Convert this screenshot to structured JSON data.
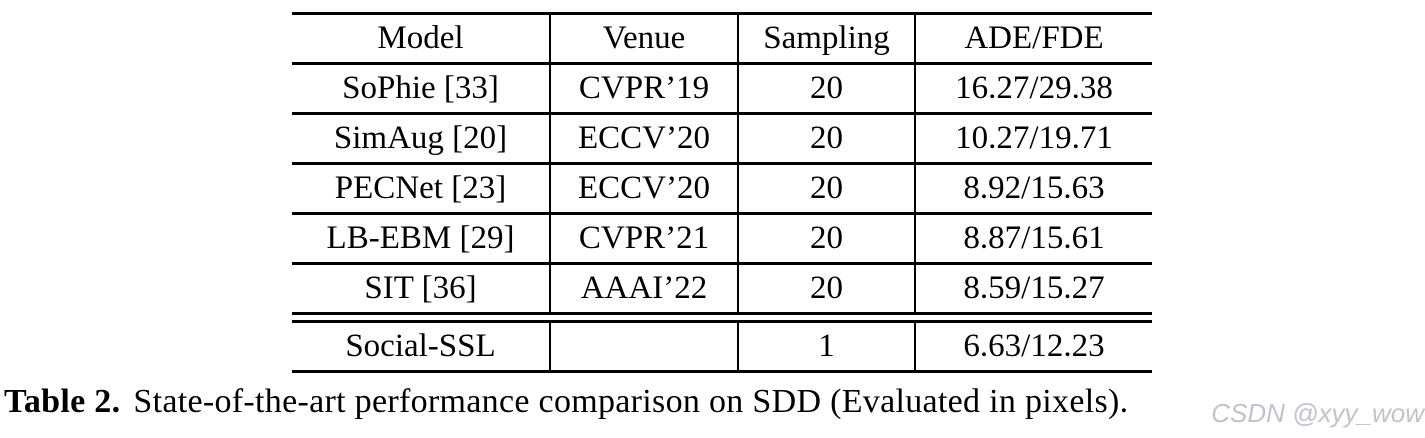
{
  "table": {
    "columns": [
      "Model",
      "Venue",
      "Sampling",
      "ADE/FDE"
    ],
    "rows": [
      {
        "model": "SoPhie [33]",
        "venue": "CVPR’19",
        "sampling": "20",
        "ade_fde": "16.27/29.38"
      },
      {
        "model": "SimAug [20]",
        "venue": "ECCV’20",
        "sampling": "20",
        "ade_fde": "10.27/19.71"
      },
      {
        "model": "PECNet [23]",
        "venue": "ECCV’20",
        "sampling": "20",
        "ade_fde": "8.92/15.63"
      },
      {
        "model": "LB-EBM [29]",
        "venue": "CVPR’21",
        "sampling": "20",
        "ade_fde": "8.87/15.61"
      },
      {
        "model": "SIT [36]",
        "venue": "AAAI’22",
        "sampling": "20",
        "ade_fde": "8.59/15.27"
      }
    ],
    "highlight_row": {
      "model": "Social-SSL",
      "venue": "",
      "sampling": "1",
      "ade_fde": "6.63/12.23"
    }
  },
  "caption": {
    "label": "Table 2.",
    "text": "State-of-the-art performance comparison on SDD (Evaluated in pixels)."
  },
  "watermark": "CSDN @xyy_wow",
  "colors": {
    "rule": "#000000",
    "background": "#ffffff",
    "watermark": "#b7b8c6"
  }
}
